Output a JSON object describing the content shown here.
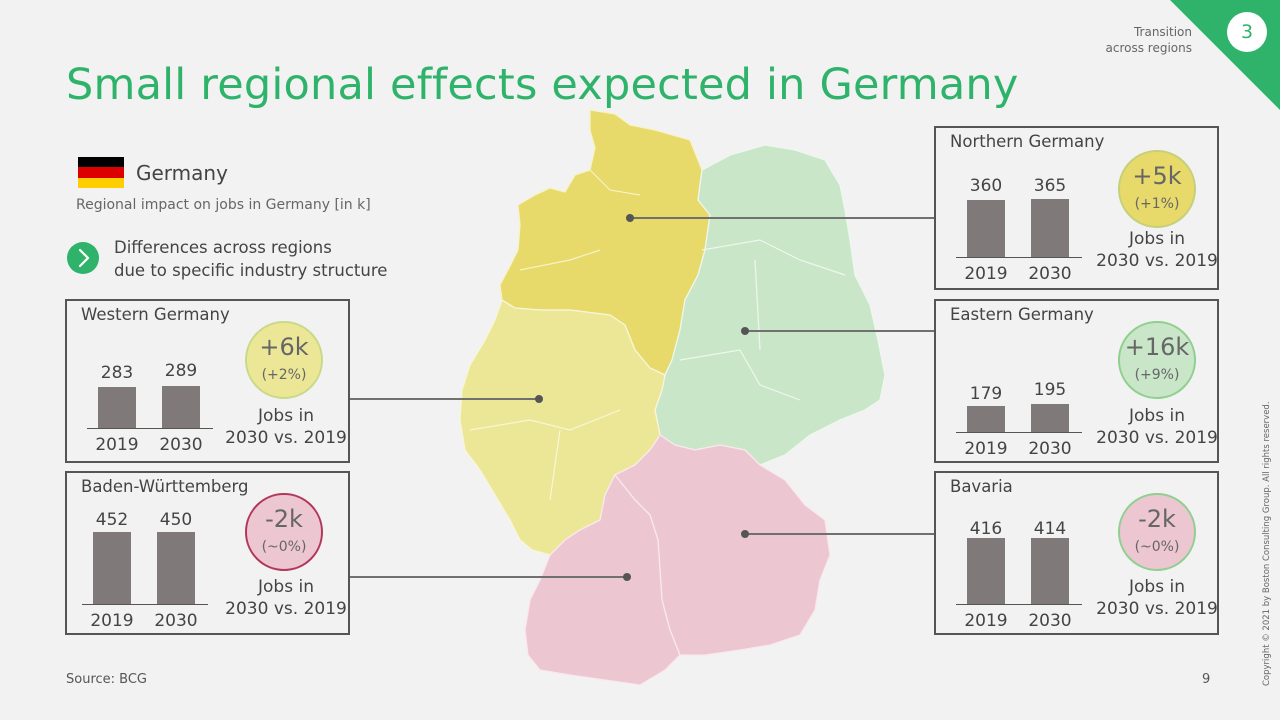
{
  "header": {
    "title": "Small regional effects expected in Germany",
    "section_name_line1": "Transition",
    "section_name_line2": "across regions",
    "section_number": "3",
    "accent_color": "#2fb36b"
  },
  "intro": {
    "country": "Germany",
    "subtitle": "Regional impact on jobs in Germany [in k]",
    "difference_line1": "Differences across regions",
    "difference_line2": "due to specific industry structure",
    "flag_colors": [
      "#000000",
      "#dd0000",
      "#ffce00"
    ]
  },
  "regions": {
    "northern": {
      "name": "Northern Germany",
      "year1": "2019",
      "year2": "2030",
      "value1": "360",
      "value2": "365",
      "bar1": 360,
      "bar2": 365,
      "change": "+5k",
      "change_pct": "(+1%)",
      "jobs_line1": "Jobs in",
      "jobs_line2": "2030 vs. 2019",
      "fill_color": "#e7d96a"
    },
    "eastern": {
      "name": "Eastern Germany",
      "year1": "2019",
      "year2": "2030",
      "value1": "179",
      "value2": "195",
      "bar1": 179,
      "bar2": 195,
      "change": "+16k",
      "change_pct": "(+9%)",
      "jobs_line1": "Jobs in",
      "jobs_line2": "2030 vs. 2019",
      "fill_color": "#c9e6c9"
    },
    "western": {
      "name": "Western Germany",
      "year1": "2019",
      "year2": "2030",
      "value1": "283",
      "value2": "289",
      "bar1": 283,
      "bar2": 289,
      "change": "+6k",
      "change_pct": "(+2%)",
      "jobs_line1": "Jobs in",
      "jobs_line2": "2030 vs. 2019",
      "fill_color": "#ece797"
    },
    "baden": {
      "name": "Baden-Württemberg",
      "year1": "2019",
      "year2": "2030",
      "value1": "452",
      "value2": "450",
      "bar1": 452,
      "bar2": 450,
      "change": "-2k",
      "change_pct": "(~0%)",
      "jobs_line1": "Jobs in",
      "jobs_line2": "2030 vs. 2019",
      "fill_color": "#ecc6d1"
    },
    "bavaria": {
      "name": "Bavaria",
      "year1": "2019",
      "year2": "2030",
      "value1": "416",
      "value2": "414",
      "bar1": 416,
      "bar2": 414,
      "change": "-2k",
      "change_pct": "(~0%)",
      "jobs_line1": "Jobs in",
      "jobs_line2": "2030 vs. 2019",
      "fill_color": "#ecc6d1"
    }
  },
  "footer": {
    "source": "Source: BCG",
    "page_number": "9",
    "copyright": "Copyright © 2021 by Boston Consulting Group. All rights reserved."
  }
}
